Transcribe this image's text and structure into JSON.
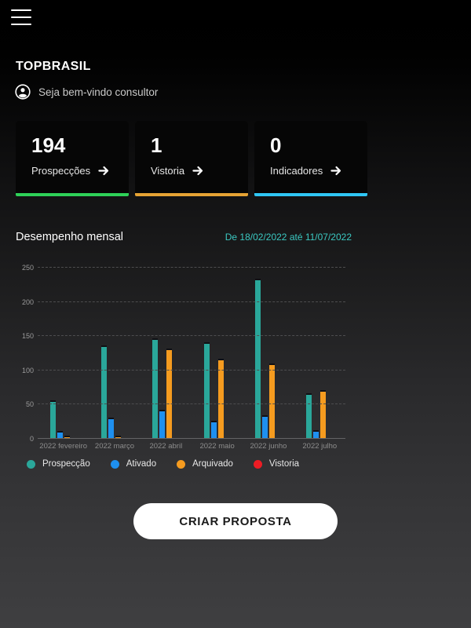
{
  "icons": {
    "menu": "hamburger three-lines",
    "avatar": "person-in-circle",
    "arrow_forward": "➜"
  },
  "header": {
    "brand": "TOPBRASIL",
    "welcome": "Seja bem-vindo consultor"
  },
  "summary_cards": [
    {
      "value": "194",
      "label": "Prospecções",
      "accent_color": "#2ed158"
    },
    {
      "value": "1",
      "label": "Vistoria",
      "accent_color": "#e6a334"
    },
    {
      "value": "0",
      "label": "Indicadores",
      "accent_color": "#2fc6f5"
    }
  ],
  "performance": {
    "title": "Desempenho mensal",
    "date_range": "De 18/02/2022 até 11/07/2022",
    "date_color": "#3bc9c2"
  },
  "chart_data": {
    "type": "bar",
    "title": "Desempenho mensal",
    "categories": [
      "2022 fevereiro",
      "2022 março",
      "2022 abril",
      "2022 maio",
      "2022 junho",
      "2022 julho"
    ],
    "series": [
      {
        "name": "Prospecção",
        "color": "#2aa79a",
        "values": [
          55,
          135,
          146,
          140,
          233,
          65
        ]
      },
      {
        "name": "Ativado",
        "color": "#1e90f0",
        "values": [
          10,
          30,
          41,
          25,
          33,
          12
        ]
      },
      {
        "name": "Arquivado",
        "color": "#f59b1f",
        "values": [
          3,
          3,
          131,
          116,
          109,
          70
        ]
      },
      {
        "name": "Vistoria",
        "color": "#ed1c24",
        "values": [
          0,
          0,
          0,
          0,
          0,
          0
        ]
      }
    ],
    "xlabel": "",
    "ylabel": "",
    "ylim": [
      0,
      250
    ],
    "yticks": [
      0,
      50,
      100,
      150,
      200,
      250
    ],
    "grid": "horizontal dashed",
    "legend_position": "bottom-left"
  },
  "cta": {
    "label": "CRIAR PROPOSTA"
  }
}
